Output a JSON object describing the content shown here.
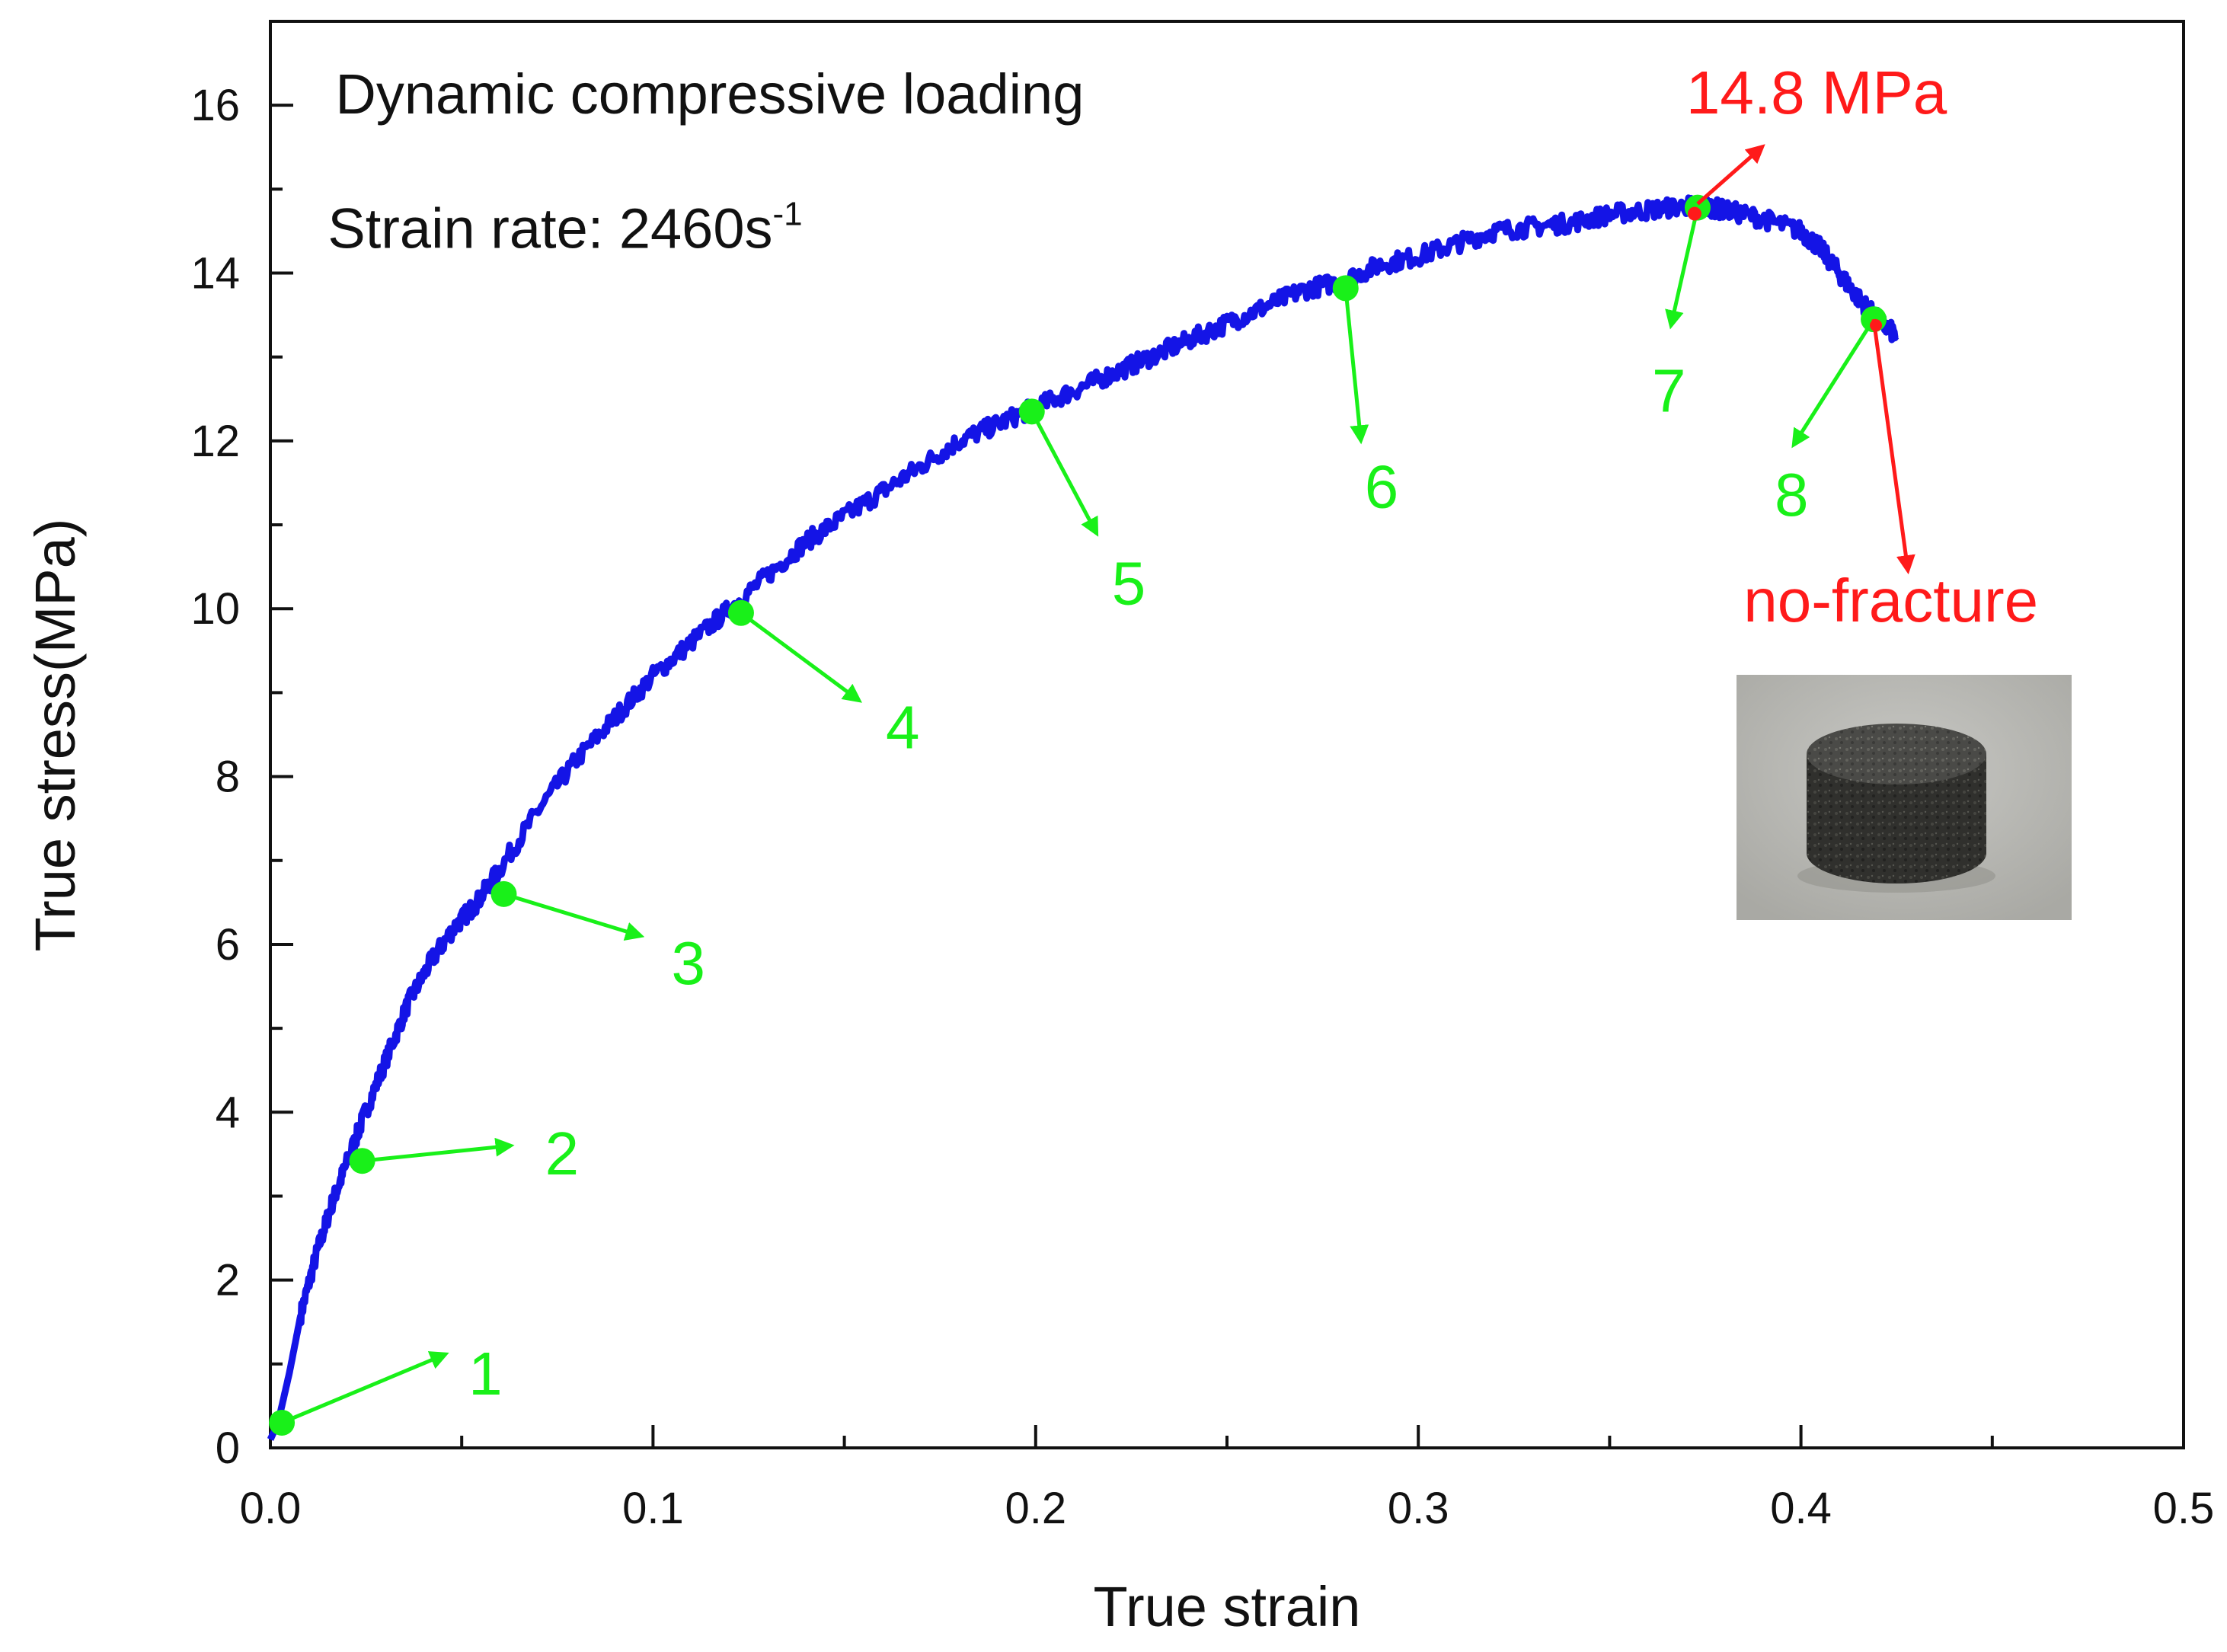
{
  "chart_data": {
    "type": "line",
    "title": "",
    "xlabel": "True strain",
    "ylabel": "True stress(MPa)",
    "xlim": [
      0.0,
      0.5
    ],
    "ylim": [
      0,
      17
    ],
    "x_ticks": [
      0.0,
      0.1,
      0.2,
      0.3,
      0.4,
      0.5
    ],
    "x_tick_labels": [
      "0.0",
      "0.1",
      "0.2",
      "0.3",
      "0.4",
      "0.5"
    ],
    "y_ticks": [
      0,
      2,
      4,
      6,
      8,
      10,
      12,
      14,
      16
    ],
    "y_tick_labels": [
      "0",
      "2",
      "4",
      "6",
      "8",
      "10",
      "12",
      "14",
      "16"
    ],
    "grid": false,
    "series": [
      {
        "name": "Dynamic compressive loading, 2460 s-1",
        "color": "#1414e6",
        "x": [
          0.0,
          0.002,
          0.005,
          0.008,
          0.012,
          0.016,
          0.02,
          0.024,
          0.03,
          0.036,
          0.042,
          0.048,
          0.054,
          0.06,
          0.07,
          0.08,
          0.09,
          0.1,
          0.11,
          0.12,
          0.13,
          0.14,
          0.15,
          0.16,
          0.17,
          0.18,
          0.19,
          0.2,
          0.21,
          0.22,
          0.23,
          0.24,
          0.25,
          0.26,
          0.27,
          0.28,
          0.29,
          0.3,
          0.31,
          0.32,
          0.33,
          0.34,
          0.35,
          0.36,
          0.37,
          0.375,
          0.38,
          0.39,
          0.4,
          0.405,
          0.41,
          0.415,
          0.42,
          0.425
        ],
        "y": [
          0.1,
          0.3,
          0.9,
          1.6,
          2.3,
          2.9,
          3.4,
          3.9,
          4.6,
          5.3,
          5.8,
          6.2,
          6.5,
          6.9,
          7.6,
          8.2,
          8.7,
          9.2,
          9.6,
          10.0,
          10.4,
          10.8,
          11.1,
          11.4,
          11.7,
          12.0,
          12.2,
          12.4,
          12.6,
          12.8,
          13.0,
          13.2,
          13.4,
          13.6,
          13.8,
          13.9,
          14.1,
          14.2,
          14.35,
          14.5,
          14.55,
          14.6,
          14.7,
          14.75,
          14.8,
          14.8,
          14.75,
          14.65,
          14.5,
          14.3,
          14.0,
          13.7,
          13.45,
          13.25
        ]
      }
    ],
    "markers": [
      {
        "label": "1",
        "x": 0.003,
        "y": 0.3
      },
      {
        "label": "2",
        "x": 0.024,
        "y": 3.42
      },
      {
        "label": "3",
        "x": 0.061,
        "y": 6.6
      },
      {
        "label": "4",
        "x": 0.123,
        "y": 9.95
      },
      {
        "label": "5",
        "x": 0.199,
        "y": 12.35
      },
      {
        "label": "6",
        "x": 0.281,
        "y": 13.82
      },
      {
        "label": "7",
        "x": 0.373,
        "y": 14.78
      },
      {
        "label": "8",
        "x": 0.419,
        "y": 13.45
      }
    ],
    "annotations": [
      {
        "text": "Dynamic compressive loading",
        "x": 0.017,
        "y": 15.9
      },
      {
        "text": "Strain rate: 2460s",
        "superscript": "-1",
        "x": 0.015,
        "y": 14.3
      },
      {
        "text": "14.8 MPa",
        "x": 0.37,
        "y": 15.9
      },
      {
        "text": "no-fracture",
        "x": 0.385,
        "y": 9.85
      }
    ]
  },
  "colors": {
    "line": "#1414e6",
    "marker": "#19f019",
    "highlight": "#ff1a1a",
    "axis": "#111111"
  },
  "inset_image": {
    "description_icon": "specimen-photo",
    "alt": "cylindrical specimen photo"
  }
}
